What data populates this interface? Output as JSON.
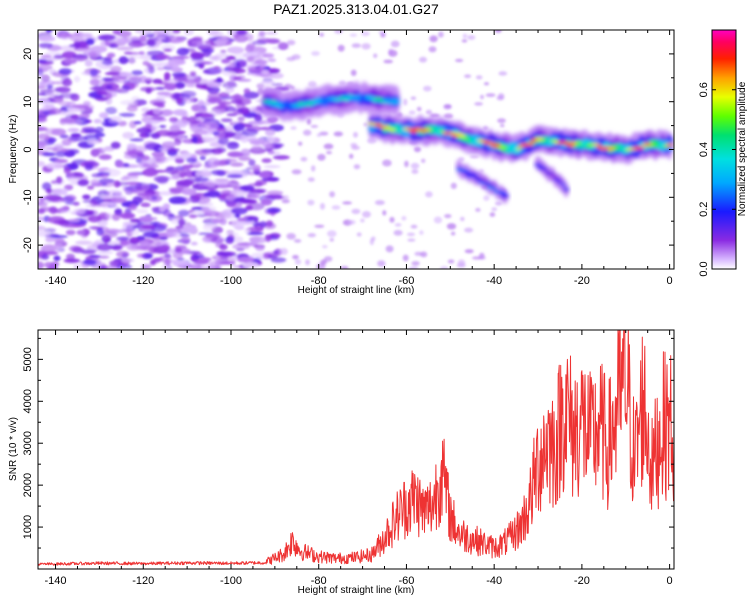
{
  "title": "PAZ1.2025.313.04.01.G27",
  "colors": {
    "snr_line": "#ee3333",
    "spectrogram_low": "#9a3cf0",
    "frame": "#000000"
  },
  "chart_data": [
    {
      "type": "heatmap",
      "name": "spectrogram",
      "title": "PAZ1.2025.313.04.01.G27",
      "xlabel": "Height of straight line (km)",
      "ylabel": "Frequency (Hz)",
      "xlim": [
        -144,
        1
      ],
      "ylim": [
        -25,
        25
      ],
      "x_ticks": [
        -140,
        -120,
        -100,
        -80,
        -60,
        -40,
        -20,
        0
      ],
      "y_ticks": [
        -20,
        -10,
        0,
        10,
        20
      ],
      "colorbar": {
        "label": "Normalized spectral amplitude",
        "range": [
          0,
          0.8
        ],
        "ticks": [
          0.0,
          0.2,
          0.4,
          0.6
        ],
        "colormap": "rainbow (white-violet-blue-cyan-green-yellow-red-magenta)"
      },
      "features": [
        {
          "name": "noise-region",
          "x_range": [
            -144,
            -88
          ],
          "freq_range": [
            -25,
            25
          ],
          "amplitude": 0.05
        },
        {
          "name": "upper-ridge",
          "points": [
            [
              -92,
              10
            ],
            [
              -88,
              9
            ],
            [
              -80,
              10
            ],
            [
              -72,
              11
            ],
            [
              -62,
              10
            ]
          ],
          "peak_amplitude": 0.45
        },
        {
          "name": "main-ridge",
          "points": [
            [
              -68,
              5
            ],
            [
              -60,
              4
            ],
            [
              -52,
              4
            ],
            [
              -45,
              2
            ],
            [
              -40,
              1
            ],
            [
              -35,
              0
            ],
            [
              -30,
              2
            ],
            [
              -20,
              1
            ],
            [
              -10,
              0
            ],
            [
              -5,
              1
            ],
            [
              0,
              1
            ]
          ],
          "peak_amplitude": 0.78
        },
        {
          "name": "lower-branch-1",
          "points": [
            [
              -48,
              -4
            ],
            [
              -42,
              -7
            ],
            [
              -37,
              -10
            ]
          ],
          "peak_amplitude": 0.3
        },
        {
          "name": "lower-branch-2",
          "points": [
            [
              -30,
              -3
            ],
            [
              -26,
              -6
            ],
            [
              -23,
              -9
            ]
          ],
          "peak_amplitude": 0.25
        }
      ]
    },
    {
      "type": "line",
      "name": "snr",
      "xlabel": "Height of straight line (km)",
      "ylabel": "SNR (10 * v/v)",
      "xlim": [
        -144,
        1
      ],
      "ylim": [
        0,
        5700
      ],
      "x_ticks": [
        -140,
        -120,
        -100,
        -80,
        -60,
        -40,
        -20,
        0
      ],
      "y_ticks": [
        1000,
        2000,
        3000,
        4000,
        5000
      ],
      "series": [
        {
          "name": "SNR",
          "color": "#ee3333",
          "x": [
            -144,
            -140,
            -130,
            -120,
            -110,
            -100,
            -92,
            -88,
            -86,
            -84,
            -80,
            -76,
            -72,
            -68,
            -66,
            -64,
            -62,
            -60,
            -58,
            -56,
            -54,
            -52,
            -50,
            -48,
            -46,
            -44,
            -42,
            -40,
            -38,
            -36,
            -34,
            -32,
            -30,
            -28,
            -26,
            -24,
            -22,
            -20,
            -18,
            -16,
            -14,
            -12,
            -10,
            -8,
            -6,
            -4,
            -2,
            0,
            1
          ],
          "values": [
            150,
            160,
            180,
            170,
            190,
            180,
            200,
            420,
            800,
            500,
            350,
            300,
            320,
            400,
            700,
            1100,
            1500,
            1800,
            2000,
            1600,
            1800,
            2800,
            1500,
            1000,
            900,
            800,
            700,
            600,
            700,
            900,
            1200,
            1800,
            3000,
            3600,
            3400,
            4600,
            3800,
            4200,
            3600,
            4000,
            3400,
            4400,
            5400,
            3000,
            4800,
            2800,
            3900,
            4200,
            3700
          ]
        }
      ]
    }
  ]
}
